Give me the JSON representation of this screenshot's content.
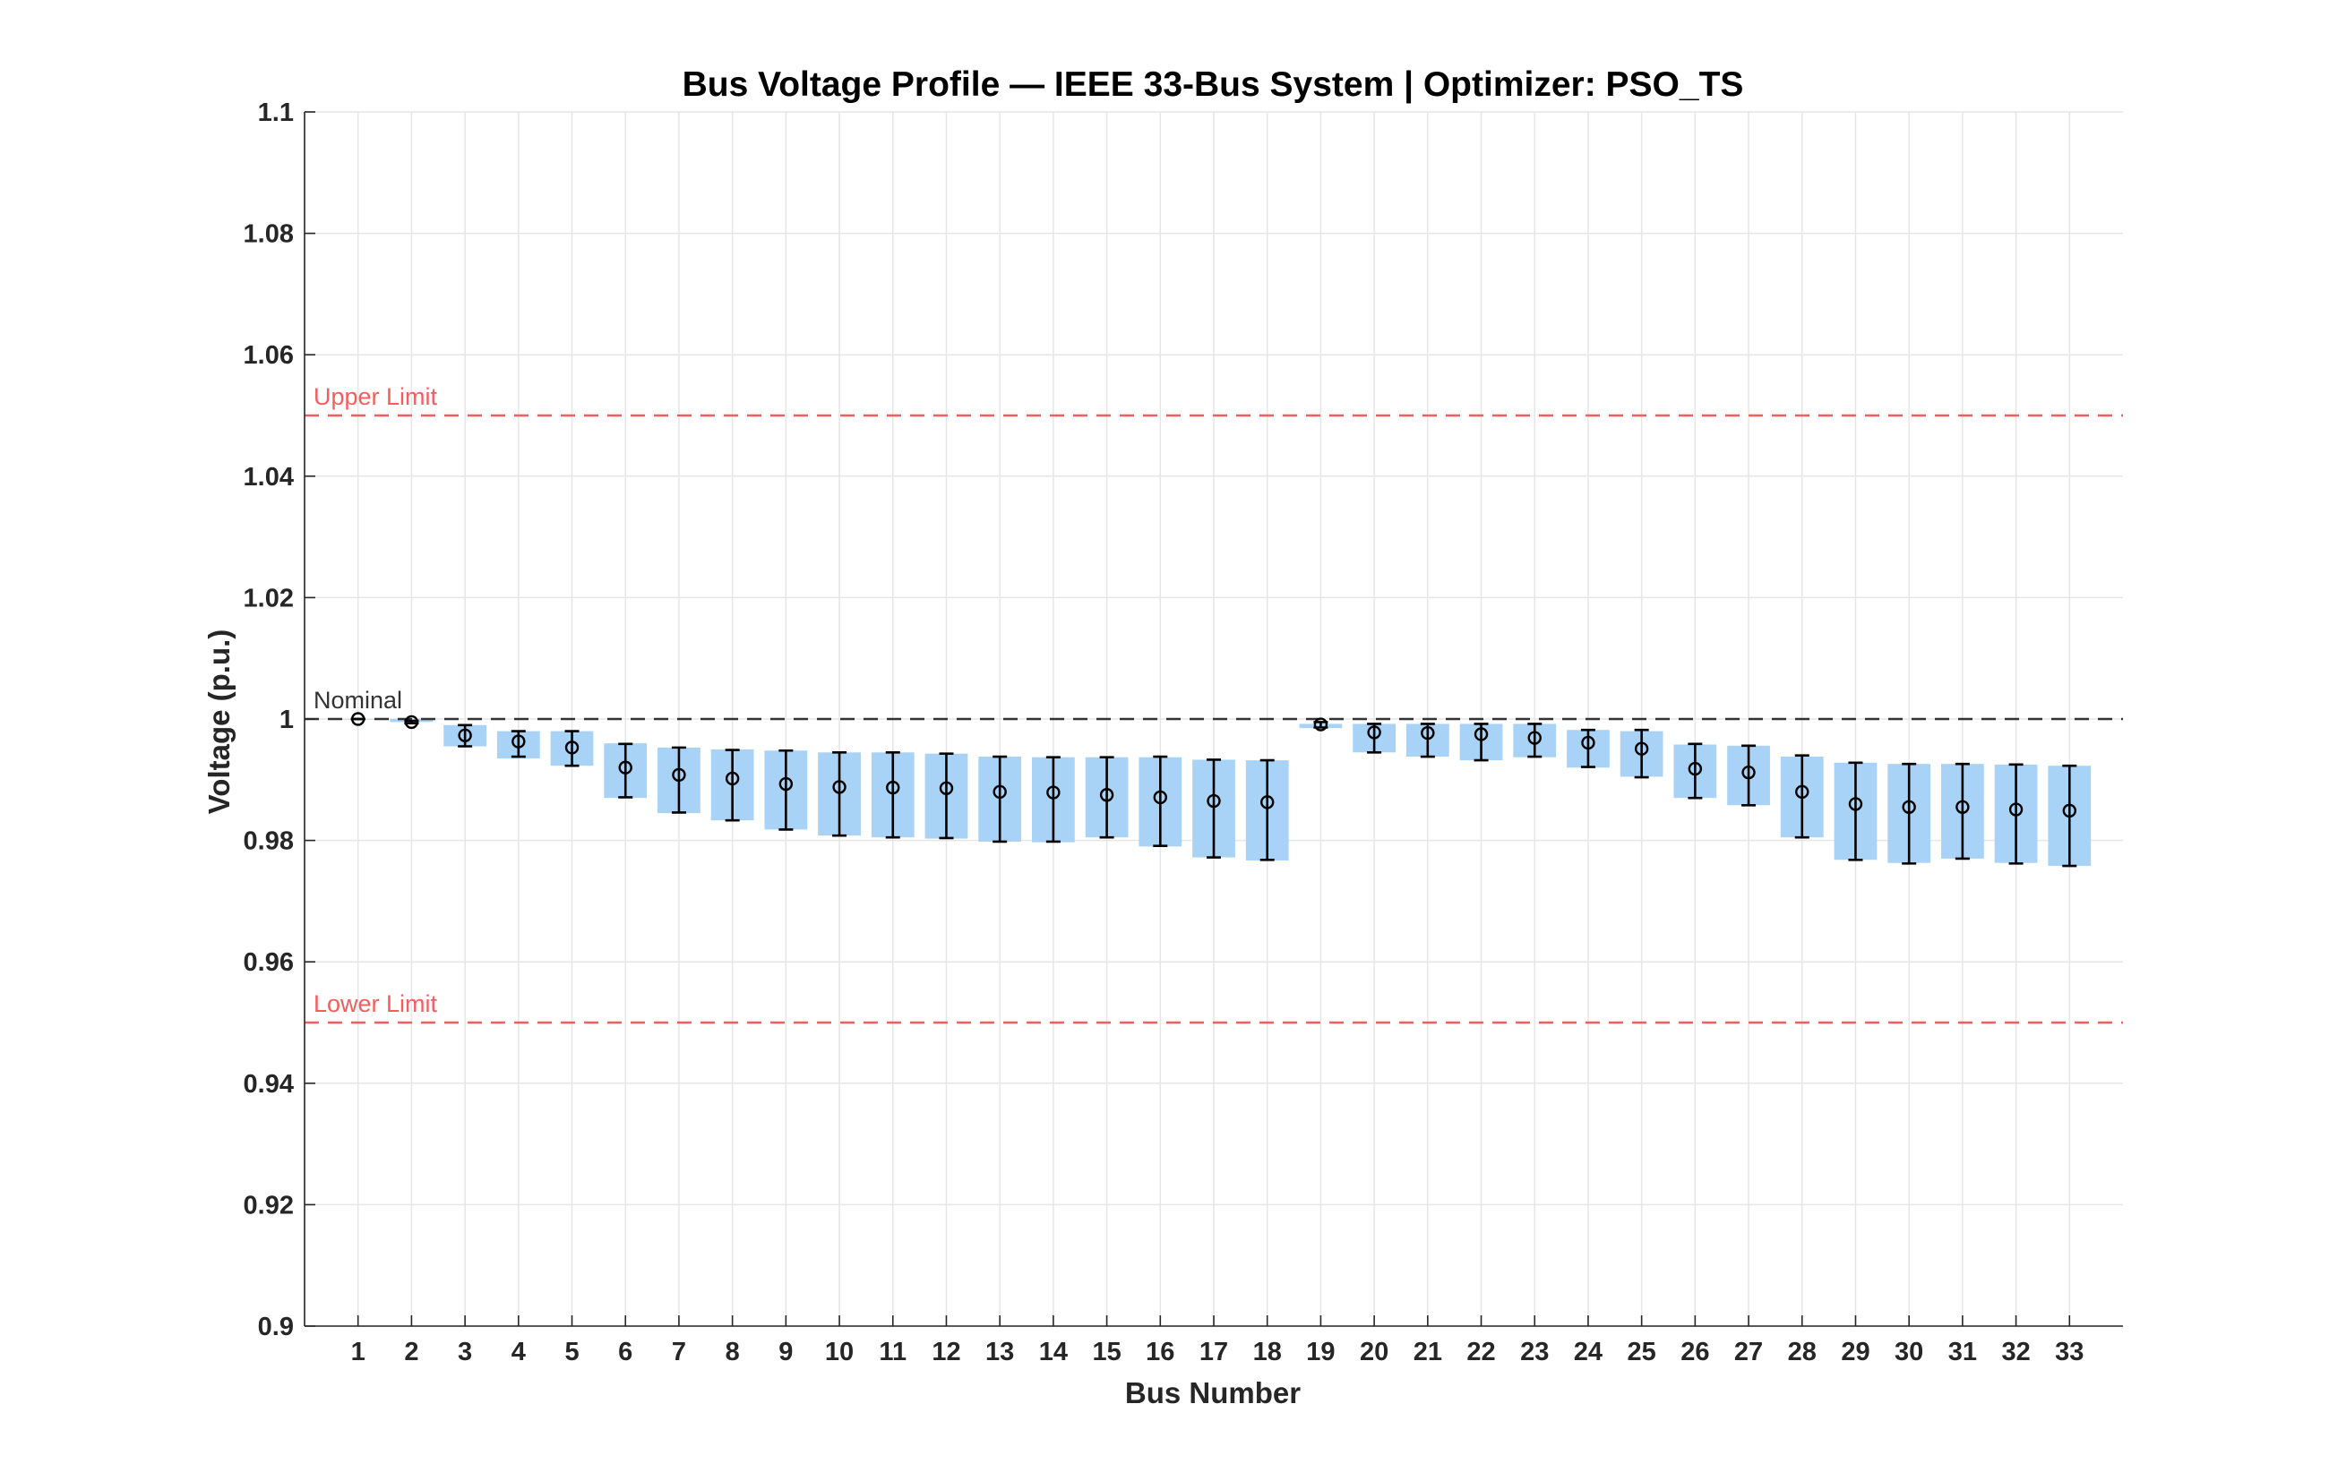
{
  "chart_data": {
    "type": "bar",
    "title": "Bus Voltage Profile — IEEE 33-Bus System | Optimizer: PSO_TS",
    "xlabel": "Bus Number",
    "ylabel": "Voltage (p.u.)",
    "ylim": [
      0.9,
      1.1
    ],
    "yticks": [
      0.9,
      0.92,
      0.94,
      0.96,
      0.98,
      1,
      1.02,
      1.04,
      1.06,
      1.08,
      1.1
    ],
    "ytick_labels": [
      "0.9",
      "0.92",
      "0.94",
      "0.96",
      "0.98",
      "1",
      "1.02",
      "1.04",
      "1.06",
      "1.08",
      "1.1"
    ],
    "grid": true,
    "categories": [
      "1",
      "2",
      "3",
      "4",
      "5",
      "6",
      "7",
      "8",
      "9",
      "10",
      "11",
      "12",
      "13",
      "14",
      "15",
      "16",
      "17",
      "18",
      "19",
      "20",
      "21",
      "22",
      "23",
      "24",
      "25",
      "26",
      "27",
      "28",
      "29",
      "30",
      "31",
      "32",
      "33"
    ],
    "bar_top": [
      1.0,
      1.0,
      0.999,
      0.998,
      0.998,
      0.996,
      0.9953,
      0.995,
      0.9948,
      0.9945,
      0.9945,
      0.9943,
      0.9938,
      0.9937,
      0.9937,
      0.9937,
      0.9933,
      0.9932,
      0.9992,
      0.9992,
      0.9992,
      0.9992,
      0.9992,
      0.9982,
      0.998,
      0.9958,
      0.9956,
      0.9938,
      0.9928,
      0.9926,
      0.9926,
      0.9925,
      0.9923
    ],
    "bar_bottom": [
      1.0,
      0.9995,
      0.9955,
      0.9935,
      0.9923,
      0.987,
      0.9845,
      0.9833,
      0.9818,
      0.9808,
      0.9805,
      0.9803,
      0.9798,
      0.9797,
      0.9805,
      0.979,
      0.9772,
      0.9767,
      0.9985,
      0.9945,
      0.9938,
      0.9932,
      0.9937,
      0.992,
      0.9905,
      0.987,
      0.9858,
      0.9805,
      0.9768,
      0.9763,
      0.977,
      0.9763,
      0.9758
    ],
    "mean": [
      1.0,
      0.9995,
      0.9973,
      0.9963,
      0.9953,
      0.992,
      0.9908,
      0.9902,
      0.9893,
      0.9888,
      0.9887,
      0.9886,
      0.988,
      0.9879,
      0.9875,
      0.9871,
      0.9865,
      0.9863,
      0.9991,
      0.9978,
      0.9977,
      0.9975,
      0.9969,
      0.9961,
      0.9951,
      0.9918,
      0.9912,
      0.988,
      0.986,
      0.9855,
      0.9855,
      0.9851,
      0.9849
    ],
    "err_low": [
      1.0,
      0.9993,
      0.9955,
      0.9938,
      0.9923,
      0.9871,
      0.9846,
      0.9833,
      0.9818,
      0.9808,
      0.9805,
      0.9804,
      0.9798,
      0.9798,
      0.9805,
      0.9791,
      0.9772,
      0.9768,
      0.9986,
      0.9945,
      0.9938,
      0.9932,
      0.9938,
      0.9921,
      0.9904,
      0.987,
      0.9858,
      0.9805,
      0.9768,
      0.9762,
      0.977,
      0.9762,
      0.9758
    ],
    "err_high": [
      1.0,
      0.9997,
      0.999,
      0.998,
      0.998,
      0.9959,
      0.9953,
      0.9949,
      0.9948,
      0.9945,
      0.9945,
      0.9943,
      0.9938,
      0.9937,
      0.9937,
      0.9938,
      0.9933,
      0.9932,
      0.9995,
      0.9992,
      0.9992,
      0.9992,
      0.9992,
      0.9982,
      0.9982,
      0.9959,
      0.9956,
      0.994,
      0.9928,
      0.9926,
      0.9926,
      0.9925,
      0.9923
    ],
    "bar_color": "#a8d3f7",
    "marker_color": "#000000",
    "reference_lines": [
      {
        "label": "Upper Limit",
        "value": 1.05,
        "color": "#f25e5e"
      },
      {
        "label": "Nominal",
        "value": 1.0,
        "color": "#333333"
      },
      {
        "label": "Lower Limit",
        "value": 0.95,
        "color": "#f25e5e"
      }
    ]
  }
}
